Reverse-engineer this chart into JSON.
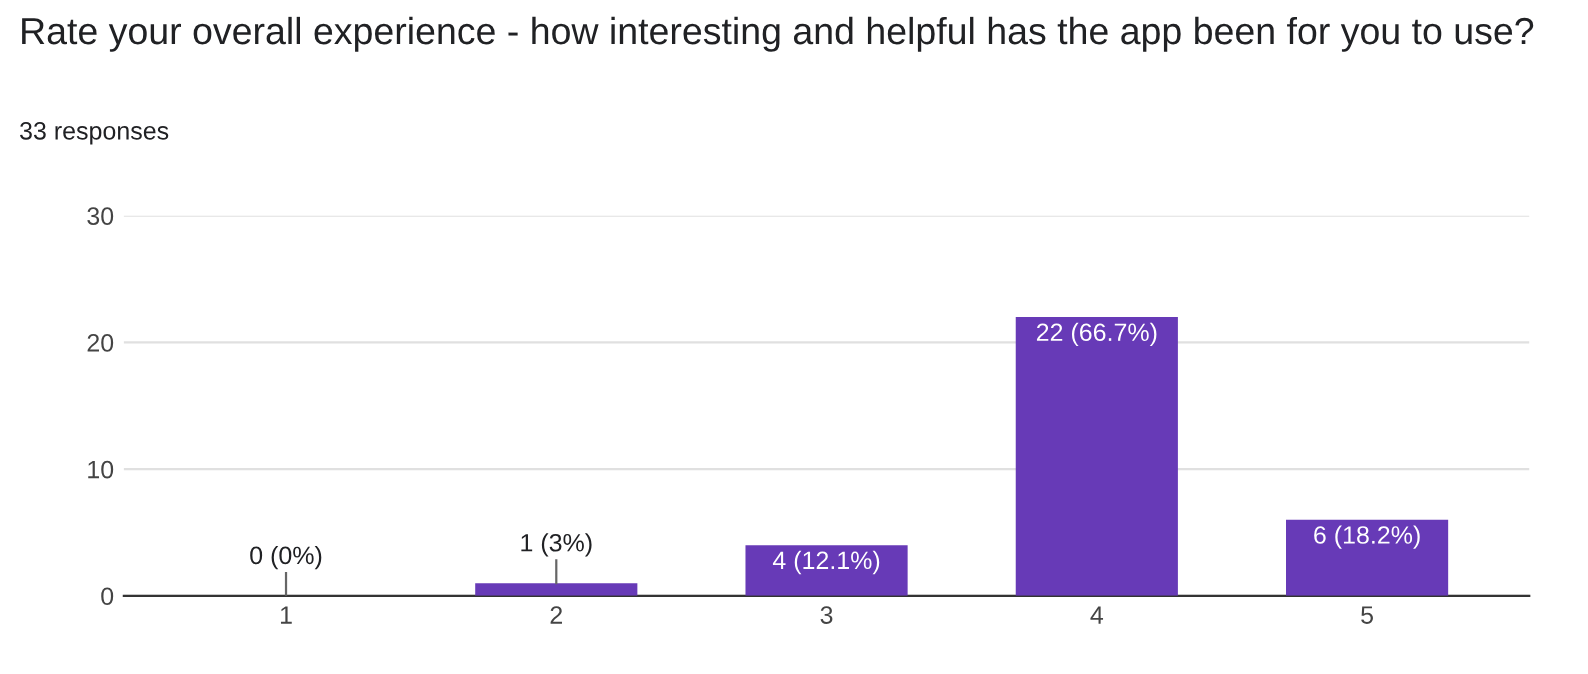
{
  "chart_data": {
    "type": "bar",
    "title": "Rate your overall experience - how interesting and helpful has the app been for you to use?",
    "subtitle": "33 responses",
    "categories": [
      "1",
      "2",
      "3",
      "4",
      "5"
    ],
    "values": [
      0,
      1,
      4,
      22,
      6
    ],
    "color": "#673ab7",
    "value_labels": [
      "0 (0%)",
      "1 (3%)",
      "4 (12.1%)",
      "22 (66.7%)",
      "6 (18.2%)"
    ],
    "ylim": [
      0,
      30
    ],
    "yticks": [
      0,
      10,
      20,
      30
    ],
    "grid": "y"
  }
}
